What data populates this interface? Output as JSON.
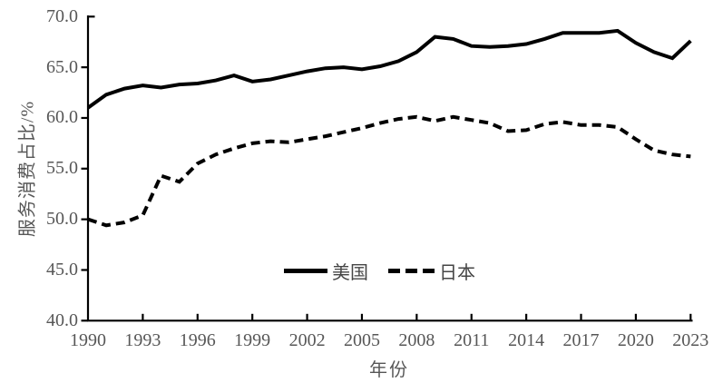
{
  "chart_data": {
    "type": "line",
    "title": "",
    "xlabel": "年份",
    "ylabel": "服务消费占比/%",
    "x": [
      1990,
      1991,
      1992,
      1993,
      1994,
      1995,
      1996,
      1997,
      1998,
      1999,
      2000,
      2001,
      2002,
      2003,
      2004,
      2005,
      2006,
      2007,
      2008,
      2009,
      2010,
      2011,
      2012,
      2013,
      2014,
      2015,
      2016,
      2017,
      2018,
      2019,
      2020,
      2021,
      2022,
      2023
    ],
    "series": [
      {
        "name": "美国",
        "style": "solid",
        "color": "#000000",
        "values": [
          61.0,
          62.3,
          62.9,
          63.2,
          63.0,
          63.3,
          63.4,
          63.7,
          64.2,
          63.6,
          63.8,
          64.2,
          64.6,
          64.9,
          65.0,
          64.8,
          65.1,
          65.6,
          66.5,
          68.0,
          67.8,
          67.1,
          67.0,
          67.1,
          67.3,
          67.8,
          68.4,
          68.4,
          68.4,
          68.6,
          67.4,
          66.5,
          65.9,
          67.6
        ]
      },
      {
        "name": "日本",
        "style": "dashed",
        "color": "#000000",
        "values": [
          50.0,
          49.4,
          49.7,
          50.4,
          54.3,
          53.7,
          55.5,
          56.4,
          57.0,
          57.5,
          57.7,
          57.6,
          57.9,
          58.2,
          58.6,
          59.0,
          59.5,
          59.9,
          60.1,
          59.7,
          60.1,
          59.8,
          59.5,
          58.7,
          58.8,
          59.4,
          59.6,
          59.3,
          59.3,
          59.1,
          57.9,
          56.8,
          56.4,
          56.2
        ]
      }
    ],
    "ylim": [
      40.0,
      70.0
    ],
    "xlim": [
      1990,
      2023
    ],
    "y_tick_labels": [
      "70.0",
      "65.0",
      "60.0",
      "55.0",
      "50.0",
      "45.0",
      "40.0"
    ],
    "x_tick_labels": [
      "1990",
      "1993",
      "1996",
      "1999",
      "2002",
      "2005",
      "2008",
      "2011",
      "2014",
      "2017",
      "2020",
      "2023"
    ],
    "grid": "off",
    "legend_position": "bottom-center-inside",
    "axis_color": "#000000",
    "label_color": "#575757",
    "background_color": "#ffffff"
  },
  "legend": {
    "us_label": "美国",
    "japan_label": "日本"
  }
}
